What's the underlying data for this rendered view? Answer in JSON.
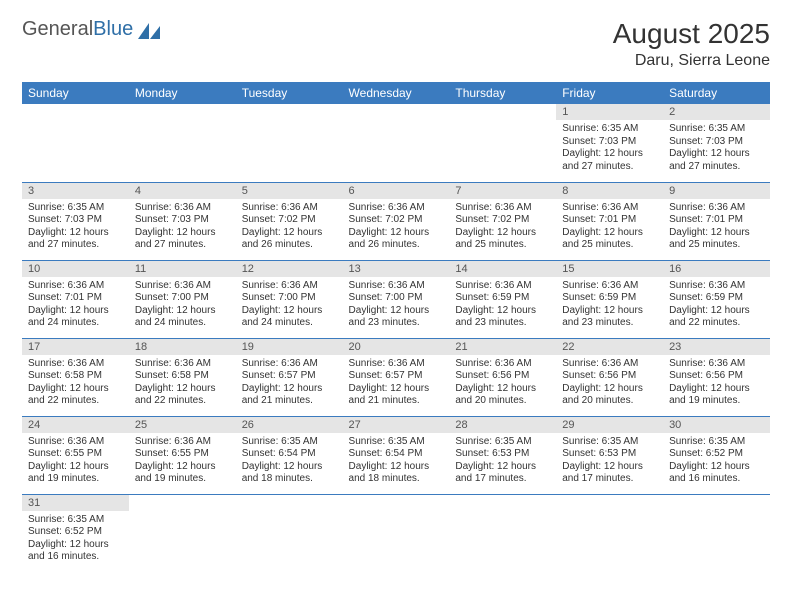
{
  "logo": {
    "general": "General",
    "blue": "Blue"
  },
  "title": "August 2025",
  "location": "Daru, Sierra Leone",
  "colors": {
    "header_bg": "#3b7bbf",
    "header_text": "#ffffff",
    "daynum_bg": "#e5e5e5",
    "border": "#3b7bbf",
    "logo_blue": "#2f6fa7"
  },
  "weekdays": [
    "Sunday",
    "Monday",
    "Tuesday",
    "Wednesday",
    "Thursday",
    "Friday",
    "Saturday"
  ],
  "weeks": [
    [
      null,
      null,
      null,
      null,
      null,
      {
        "n": "1",
        "sr": "Sunrise: 6:35 AM",
        "ss": "Sunset: 7:03 PM",
        "d1": "Daylight: 12 hours",
        "d2": "and 27 minutes."
      },
      {
        "n": "2",
        "sr": "Sunrise: 6:35 AM",
        "ss": "Sunset: 7:03 PM",
        "d1": "Daylight: 12 hours",
        "d2": "and 27 minutes."
      }
    ],
    [
      {
        "n": "3",
        "sr": "Sunrise: 6:35 AM",
        "ss": "Sunset: 7:03 PM",
        "d1": "Daylight: 12 hours",
        "d2": "and 27 minutes."
      },
      {
        "n": "4",
        "sr": "Sunrise: 6:36 AM",
        "ss": "Sunset: 7:03 PM",
        "d1": "Daylight: 12 hours",
        "d2": "and 27 minutes."
      },
      {
        "n": "5",
        "sr": "Sunrise: 6:36 AM",
        "ss": "Sunset: 7:02 PM",
        "d1": "Daylight: 12 hours",
        "d2": "and 26 minutes."
      },
      {
        "n": "6",
        "sr": "Sunrise: 6:36 AM",
        "ss": "Sunset: 7:02 PM",
        "d1": "Daylight: 12 hours",
        "d2": "and 26 minutes."
      },
      {
        "n": "7",
        "sr": "Sunrise: 6:36 AM",
        "ss": "Sunset: 7:02 PM",
        "d1": "Daylight: 12 hours",
        "d2": "and 25 minutes."
      },
      {
        "n": "8",
        "sr": "Sunrise: 6:36 AM",
        "ss": "Sunset: 7:01 PM",
        "d1": "Daylight: 12 hours",
        "d2": "and 25 minutes."
      },
      {
        "n": "9",
        "sr": "Sunrise: 6:36 AM",
        "ss": "Sunset: 7:01 PM",
        "d1": "Daylight: 12 hours",
        "d2": "and 25 minutes."
      }
    ],
    [
      {
        "n": "10",
        "sr": "Sunrise: 6:36 AM",
        "ss": "Sunset: 7:01 PM",
        "d1": "Daylight: 12 hours",
        "d2": "and 24 minutes."
      },
      {
        "n": "11",
        "sr": "Sunrise: 6:36 AM",
        "ss": "Sunset: 7:00 PM",
        "d1": "Daylight: 12 hours",
        "d2": "and 24 minutes."
      },
      {
        "n": "12",
        "sr": "Sunrise: 6:36 AM",
        "ss": "Sunset: 7:00 PM",
        "d1": "Daylight: 12 hours",
        "d2": "and 24 minutes."
      },
      {
        "n": "13",
        "sr": "Sunrise: 6:36 AM",
        "ss": "Sunset: 7:00 PM",
        "d1": "Daylight: 12 hours",
        "d2": "and 23 minutes."
      },
      {
        "n": "14",
        "sr": "Sunrise: 6:36 AM",
        "ss": "Sunset: 6:59 PM",
        "d1": "Daylight: 12 hours",
        "d2": "and 23 minutes."
      },
      {
        "n": "15",
        "sr": "Sunrise: 6:36 AM",
        "ss": "Sunset: 6:59 PM",
        "d1": "Daylight: 12 hours",
        "d2": "and 23 minutes."
      },
      {
        "n": "16",
        "sr": "Sunrise: 6:36 AM",
        "ss": "Sunset: 6:59 PM",
        "d1": "Daylight: 12 hours",
        "d2": "and 22 minutes."
      }
    ],
    [
      {
        "n": "17",
        "sr": "Sunrise: 6:36 AM",
        "ss": "Sunset: 6:58 PM",
        "d1": "Daylight: 12 hours",
        "d2": "and 22 minutes."
      },
      {
        "n": "18",
        "sr": "Sunrise: 6:36 AM",
        "ss": "Sunset: 6:58 PM",
        "d1": "Daylight: 12 hours",
        "d2": "and 22 minutes."
      },
      {
        "n": "19",
        "sr": "Sunrise: 6:36 AM",
        "ss": "Sunset: 6:57 PM",
        "d1": "Daylight: 12 hours",
        "d2": "and 21 minutes."
      },
      {
        "n": "20",
        "sr": "Sunrise: 6:36 AM",
        "ss": "Sunset: 6:57 PM",
        "d1": "Daylight: 12 hours",
        "d2": "and 21 minutes."
      },
      {
        "n": "21",
        "sr": "Sunrise: 6:36 AM",
        "ss": "Sunset: 6:56 PM",
        "d1": "Daylight: 12 hours",
        "d2": "and 20 minutes."
      },
      {
        "n": "22",
        "sr": "Sunrise: 6:36 AM",
        "ss": "Sunset: 6:56 PM",
        "d1": "Daylight: 12 hours",
        "d2": "and 20 minutes."
      },
      {
        "n": "23",
        "sr": "Sunrise: 6:36 AM",
        "ss": "Sunset: 6:56 PM",
        "d1": "Daylight: 12 hours",
        "d2": "and 19 minutes."
      }
    ],
    [
      {
        "n": "24",
        "sr": "Sunrise: 6:36 AM",
        "ss": "Sunset: 6:55 PM",
        "d1": "Daylight: 12 hours",
        "d2": "and 19 minutes."
      },
      {
        "n": "25",
        "sr": "Sunrise: 6:36 AM",
        "ss": "Sunset: 6:55 PM",
        "d1": "Daylight: 12 hours",
        "d2": "and 19 minutes."
      },
      {
        "n": "26",
        "sr": "Sunrise: 6:35 AM",
        "ss": "Sunset: 6:54 PM",
        "d1": "Daylight: 12 hours",
        "d2": "and 18 minutes."
      },
      {
        "n": "27",
        "sr": "Sunrise: 6:35 AM",
        "ss": "Sunset: 6:54 PM",
        "d1": "Daylight: 12 hours",
        "d2": "and 18 minutes."
      },
      {
        "n": "28",
        "sr": "Sunrise: 6:35 AM",
        "ss": "Sunset: 6:53 PM",
        "d1": "Daylight: 12 hours",
        "d2": "and 17 minutes."
      },
      {
        "n": "29",
        "sr": "Sunrise: 6:35 AM",
        "ss": "Sunset: 6:53 PM",
        "d1": "Daylight: 12 hours",
        "d2": "and 17 minutes."
      },
      {
        "n": "30",
        "sr": "Sunrise: 6:35 AM",
        "ss": "Sunset: 6:52 PM",
        "d1": "Daylight: 12 hours",
        "d2": "and 16 minutes."
      }
    ],
    [
      {
        "n": "31",
        "sr": "Sunrise: 6:35 AM",
        "ss": "Sunset: 6:52 PM",
        "d1": "Daylight: 12 hours",
        "d2": "and 16 minutes."
      },
      null,
      null,
      null,
      null,
      null,
      null
    ]
  ]
}
